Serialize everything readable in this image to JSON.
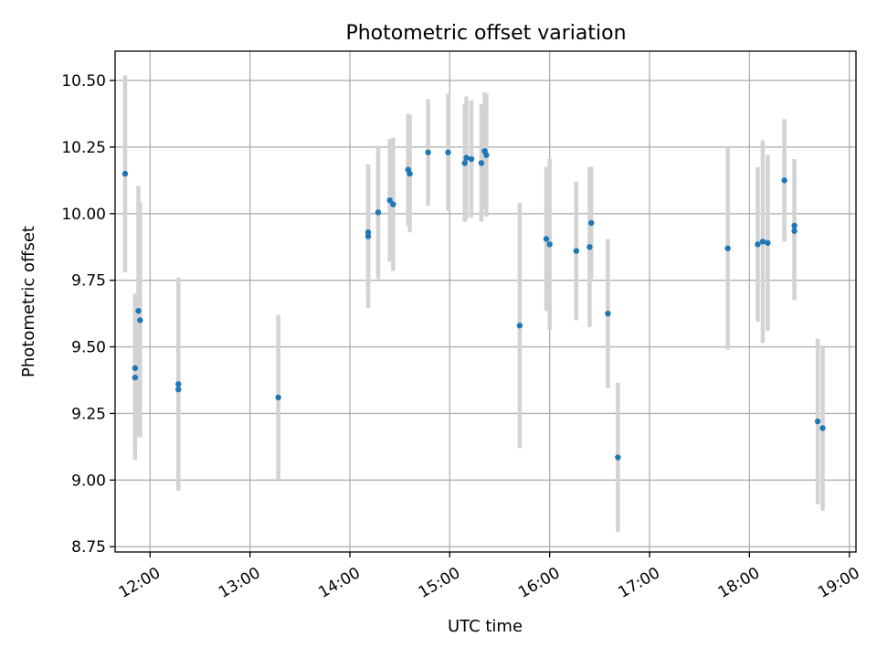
{
  "chart_data": {
    "type": "scatter",
    "title": "Photometric offset variation",
    "xlabel": "UTC time",
    "ylabel": "Photometric offset",
    "x_axis": "time",
    "xlim": [
      "11:39",
      "19:04"
    ],
    "ylim": [
      8.73,
      10.61
    ],
    "x_ticks": [
      "12:00",
      "13:00",
      "14:00",
      "15:00",
      "16:00",
      "17:00",
      "18:00",
      "19:00"
    ],
    "y_ticks": [
      "8.75",
      "9.00",
      "9.25",
      "9.50",
      "9.75",
      "10.00",
      "10.25",
      "10.50"
    ],
    "grid": true,
    "colors": {
      "point": "#1f77b4",
      "errorbar": "#d3d3d3",
      "grid": "#b0b0b0"
    },
    "series": [
      {
        "points": [
          {
            "x": "11:45",
            "y": 10.15,
            "err": 0.37
          },
          {
            "x": "11:51",
            "y": 9.42,
            "err": 0.28
          },
          {
            "x": "11:51",
            "y": 9.385,
            "err": 0.31
          },
          {
            "x": "11:53",
            "y": 9.635,
            "err": 0.47
          },
          {
            "x": "11:54",
            "y": 9.6,
            "err": 0.44
          },
          {
            "x": "12:17",
            "y": 9.36,
            "err": 0.4
          },
          {
            "x": "12:17",
            "y": 9.34,
            "err": 0.38
          },
          {
            "x": "13:17",
            "y": 9.31,
            "err": 0.31
          },
          {
            "x": "14:11",
            "y": 9.915,
            "err": 0.27
          },
          {
            "x": "14:11",
            "y": 9.93,
            "err": 0.25
          },
          {
            "x": "14:17",
            "y": 10.005,
            "err": 0.25
          },
          {
            "x": "14:24",
            "y": 10.05,
            "err": 0.23
          },
          {
            "x": "14:26",
            "y": 10.035,
            "err": 0.25
          },
          {
            "x": "14:35",
            "y": 10.165,
            "err": 0.21
          },
          {
            "x": "14:36",
            "y": 10.15,
            "err": 0.22
          },
          {
            "x": "14:47",
            "y": 10.23,
            "err": 0.2
          },
          {
            "x": "14:59",
            "y": 10.23,
            "err": 0.22
          },
          {
            "x": "15:09",
            "y": 10.19,
            "err": 0.22
          },
          {
            "x": "15:10",
            "y": 10.21,
            "err": 0.23
          },
          {
            "x": "15:13",
            "y": 10.205,
            "err": 0.22
          },
          {
            "x": "15:19",
            "y": 10.19,
            "err": 0.22
          },
          {
            "x": "15:21",
            "y": 10.235,
            "err": 0.22
          },
          {
            "x": "15:22",
            "y": 10.22,
            "err": 0.23
          },
          {
            "x": "15:42",
            "y": 9.58,
            "err": 0.46
          },
          {
            "x": "15:58",
            "y": 9.905,
            "err": 0.27
          },
          {
            "x": "16:00",
            "y": 9.885,
            "err": 0.32
          },
          {
            "x": "16:16",
            "y": 9.86,
            "err": 0.26
          },
          {
            "x": "16:24",
            "y": 9.875,
            "err": 0.3
          },
          {
            "x": "16:25",
            "y": 9.965,
            "err": 0.21
          },
          {
            "x": "16:35",
            "y": 9.625,
            "err": 0.28
          },
          {
            "x": "16:41",
            "y": 9.085,
            "err": 0.28
          },
          {
            "x": "17:47",
            "y": 9.87,
            "err": 0.38
          },
          {
            "x": "18:05",
            "y": 9.885,
            "err": 0.29
          },
          {
            "x": "18:08",
            "y": 9.895,
            "err": 0.38
          },
          {
            "x": "18:11",
            "y": 9.89,
            "err": 0.33
          },
          {
            "x": "18:21",
            "y": 10.125,
            "err": 0.23
          },
          {
            "x": "18:27",
            "y": 9.935,
            "err": 0.26
          },
          {
            "x": "18:27",
            "y": 9.955,
            "err": 0.25
          },
          {
            "x": "18:41",
            "y": 9.22,
            "err": 0.31
          },
          {
            "x": "18:44",
            "y": 9.195,
            "err": 0.31
          }
        ]
      }
    ]
  }
}
